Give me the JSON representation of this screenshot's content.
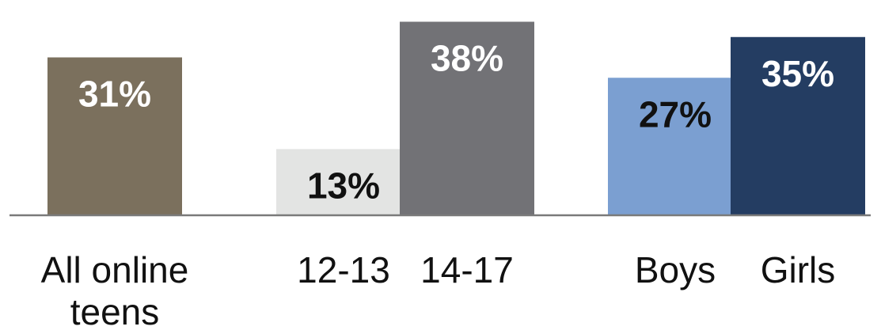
{
  "chart_data": {
    "type": "bar",
    "categories": [
      [
        "All online",
        "teens"
      ],
      [
        "12-13"
      ],
      [
        "14-17"
      ],
      [
        "Boys"
      ],
      [
        "Girls"
      ]
    ],
    "values": [
      31,
      13,
      38,
      27,
      35
    ],
    "value_labels": [
      "31%",
      "13%",
      "38%",
      "27%",
      "35%"
    ],
    "colors": [
      "#7b705d",
      "#e3e4e3",
      "#727276",
      "#7b9fd1",
      "#243d62"
    ],
    "value_label_colors": [
      "#ffffff",
      "#111111",
      "#ffffff",
      "#111111",
      "#ffffff"
    ],
    "ylim": [
      0,
      40
    ],
    "grid": false,
    "baseline_color": "#7a7a7a"
  }
}
